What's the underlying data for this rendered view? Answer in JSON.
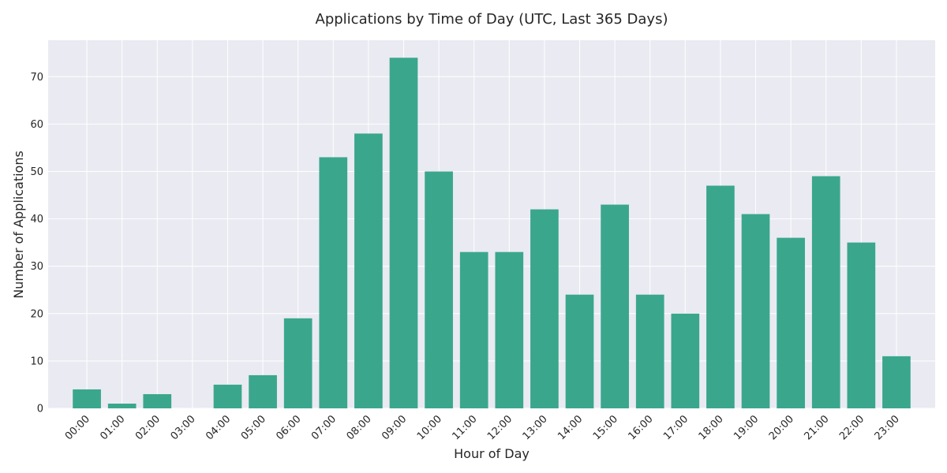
{
  "chart_data": {
    "type": "bar",
    "title": "Applications by Time of Day (UTC, Last 365 Days)",
    "xlabel": "Hour of Day",
    "ylabel": "Number of Applications",
    "categories": [
      "00:00",
      "01:00",
      "02:00",
      "03:00",
      "04:00",
      "05:00",
      "06:00",
      "07:00",
      "08:00",
      "09:00",
      "10:00",
      "11:00",
      "12:00",
      "13:00",
      "14:00",
      "15:00",
      "16:00",
      "17:00",
      "18:00",
      "19:00",
      "20:00",
      "21:00",
      "22:00",
      "23:00"
    ],
    "values": [
      4,
      1,
      3,
      0,
      5,
      7,
      19,
      53,
      58,
      74,
      50,
      33,
      33,
      42,
      24,
      43,
      24,
      20,
      47,
      41,
      36,
      49,
      35,
      11
    ],
    "ylim": [
      0,
      77.7
    ],
    "yticks": [
      0,
      10,
      20,
      30,
      40,
      50,
      60,
      70
    ],
    "grid": true,
    "bar_color": "#3aa78d",
    "background_color": "#eaeaf2",
    "grid_color": "#ffffff"
  }
}
